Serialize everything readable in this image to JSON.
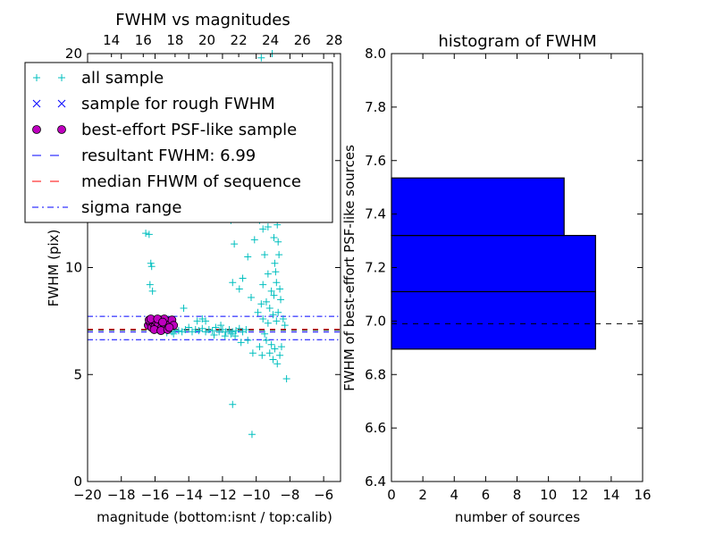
{
  "chart_data": [
    {
      "type": "scatter",
      "title": "FWHM vs magnitudes",
      "xlabel": "magnitude (bottom:isnt / top:calib)",
      "ylabel": "FWHM (pix)",
      "xlim": [
        -20,
        -5
      ],
      "ylim": [
        0,
        20
      ],
      "xticks": [
        "−20",
        "−18",
        "−16",
        "−14",
        "−12",
        "−10",
        "−8",
        "−6"
      ],
      "xtick_values": [
        -20,
        -18,
        -16,
        -14,
        -12,
        -10,
        -8,
        -6
      ],
      "top_xlim": [
        12.5,
        28.4
      ],
      "top_xticks": [
        "14",
        "16",
        "18",
        "20",
        "22",
        "24",
        "26",
        "28"
      ],
      "top_xtick_values": [
        14,
        16,
        18,
        20,
        22,
        24,
        26,
        28
      ],
      "yticks": [
        "0",
        "5",
        "10",
        "15",
        "20"
      ],
      "ytick_values": [
        0,
        5,
        10,
        15,
        20
      ],
      "legend": {
        "position": "top-left",
        "entries": [
          {
            "label": "all sample",
            "marker": "+",
            "color": "#00bfbf"
          },
          {
            "label": "sample for rough FWHM",
            "marker": "x",
            "color": "#0000ff"
          },
          {
            "label": "best-effort PSF-like sample",
            "marker": "o",
            "color": "#bf00bf"
          },
          {
            "label": "resultant FWHM: 6.99",
            "line": "dashed",
            "color": "#0000ff"
          },
          {
            "label": "median FHWM of sequence",
            "line": "dashed",
            "color": "#ff0000"
          },
          {
            "label": "sigma range",
            "line": "dashdot",
            "color": "#0000ff"
          }
        ]
      },
      "lines": {
        "resultant_fwhm": 6.99,
        "median_fwhm": 7.12,
        "sigma_low": 6.63,
        "sigma_high": 7.72
      },
      "series": [
        {
          "name": "all sample",
          "color": "#00bfbf",
          "points": [
            [
              -16.55,
              11.6
            ],
            [
              -16.35,
              11.55
            ],
            [
              -16.25,
              10.2
            ],
            [
              -16.2,
              10.05
            ],
            [
              -16.3,
              9.2
            ],
            [
              -16.15,
              8.9
            ],
            [
              -16.1,
              7.6
            ],
            [
              -16.05,
              7.2
            ],
            [
              -15.8,
              7.4
            ],
            [
              -15.5,
              7.1
            ],
            [
              -15.2,
              7.2
            ],
            [
              -15.0,
              7.0
            ],
            [
              -14.8,
              7.1
            ],
            [
              -14.6,
              7.05
            ],
            [
              -14.4,
              7.0
            ],
            [
              -14.2,
              7.1
            ],
            [
              -14.0,
              7.2
            ],
            [
              -13.8,
              7.0
            ],
            [
              -13.6,
              7.1
            ],
            [
              -13.4,
              7.05
            ],
            [
              -13.2,
              7.15
            ],
            [
              -13.0,
              7.0
            ],
            [
              -12.8,
              7.1
            ],
            [
              -12.6,
              7.05
            ],
            [
              -12.4,
              7.2
            ],
            [
              -12.2,
              7.0
            ],
            [
              -12.0,
              7.1
            ],
            [
              -11.8,
              7.0
            ],
            [
              -11.6,
              7.1
            ],
            [
              -11.4,
              7.0
            ],
            [
              -11.2,
              7.05
            ],
            [
              -11.0,
              7.15
            ],
            [
              -10.8,
              7.0
            ],
            [
              -10.6,
              7.1
            ],
            [
              -13.5,
              7.5
            ],
            [
              -13.2,
              7.6
            ],
            [
              -12.1,
              7.3
            ],
            [
              -11.85,
              6.8
            ],
            [
              -11.5,
              6.9
            ],
            [
              -14.3,
              8.1
            ],
            [
              -13.0,
              7.5
            ],
            [
              -12.5,
              6.85
            ],
            [
              -15.3,
              6.95
            ],
            [
              -14.9,
              6.9
            ],
            [
              -11.5,
              12.2
            ],
            [
              -11.3,
              11.1
            ],
            [
              -11.4,
              9.3
            ],
            [
              -11.0,
              9.0
            ],
            [
              -10.8,
              9.5
            ],
            [
              -10.5,
              10.5
            ],
            [
              -10.3,
              8.6
            ],
            [
              -10.1,
              11.3
            ],
            [
              -10.0,
              12.9
            ],
            [
              -9.9,
              13.5
            ],
            [
              -9.8,
              12.2
            ],
            [
              -9.7,
              14.0
            ],
            [
              -9.6,
              11.8
            ],
            [
              -9.5,
              13.2
            ],
            [
              -9.4,
              12.6
            ],
            [
              -9.3,
              11.9
            ],
            [
              -9.2,
              14.2
            ],
            [
              -9.1,
              13.7
            ],
            [
              -9.0,
              12.8
            ],
            [
              -8.95,
              11.4
            ],
            [
              -8.9,
              10.2
            ],
            [
              -8.85,
              9.8
            ],
            [
              -8.8,
              9.3
            ],
            [
              -9.5,
              10.6
            ],
            [
              -9.3,
              9.7
            ],
            [
              -9.1,
              8.9
            ],
            [
              -9.6,
              9.2
            ],
            [
              -9.4,
              8.4
            ],
            [
              -8.95,
              8.7
            ],
            [
              -9.2,
              8.1
            ],
            [
              -9.7,
              8.3
            ],
            [
              -9.9,
              7.9
            ],
            [
              -9.6,
              7.6
            ],
            [
              -9.3,
              7.4
            ],
            [
              -9.0,
              7.8
            ],
            [
              -8.8,
              7.5
            ],
            [
              -8.7,
              7.9
            ],
            [
              -9.4,
              6.6
            ],
            [
              -9.1,
              6.4
            ],
            [
              -9.5,
              6.9
            ],
            [
              -9.8,
              6.3
            ],
            [
              -9.2,
              6.0
            ],
            [
              -8.9,
              6.2
            ],
            [
              -8.6,
              5.9
            ],
            [
              -8.5,
              6.3
            ],
            [
              -9.0,
              5.7
            ],
            [
              -8.75,
              5.5
            ],
            [
              -8.4,
              7.6
            ],
            [
              -8.3,
              7.3
            ],
            [
              -8.2,
              4.8
            ],
            [
              -9.65,
              5.9
            ],
            [
              -10.2,
              6.0
            ],
            [
              -10.5,
              6.6
            ],
            [
              -10.9,
              6.5
            ],
            [
              -11.25,
              6.8
            ],
            [
              -9.5,
              18.2
            ],
            [
              -9.2,
              17.5
            ],
            [
              -9.0,
              17.0
            ],
            [
              -9.4,
              16.3
            ],
            [
              -9.6,
              15.8
            ],
            [
              -8.9,
              15.1
            ],
            [
              -9.1,
              15.6
            ],
            [
              -9.7,
              19.8
            ],
            [
              -9.3,
              19.1
            ],
            [
              -10.0,
              14.8
            ],
            [
              -8.85,
              13.8
            ],
            [
              -8.75,
              12.0
            ],
            [
              -8.7,
              11.2
            ],
            [
              -8.65,
              10.6
            ],
            [
              -8.6,
              9.0
            ],
            [
              -8.55,
              8.5
            ],
            [
              -11.4,
              3.6
            ],
            [
              -10.25,
              2.2
            ],
            [
              -9.05,
              20.0
            ],
            [
              -11.2,
              13.0
            ],
            [
              -11.05,
              12.5
            ]
          ]
        },
        {
          "name": "best-effort PSF-like sample",
          "color": "#bf00bf",
          "points": [
            [
              -16.4,
              7.3
            ],
            [
              -16.3,
              7.45
            ],
            [
              -16.2,
              7.2
            ],
            [
              -16.1,
              7.4
            ],
            [
              -16.0,
              7.25
            ],
            [
              -15.95,
              7.5
            ],
            [
              -15.9,
              7.15
            ],
            [
              -15.8,
              7.35
            ],
            [
              -15.7,
              7.55
            ],
            [
              -15.6,
              7.2
            ],
            [
              -15.5,
              7.4
            ],
            [
              -15.4,
              7.3
            ],
            [
              -15.3,
              7.5
            ],
            [
              -15.2,
              7.25
            ],
            [
              -15.1,
              7.4
            ],
            [
              -15.0,
              7.55
            ],
            [
              -14.9,
              7.3
            ],
            [
              -16.35,
              7.55
            ],
            [
              -16.05,
              7.1
            ],
            [
              -15.65,
              7.05
            ],
            [
              -15.45,
              7.6
            ],
            [
              -15.25,
              7.1
            ],
            [
              -16.25,
              7.6
            ],
            [
              -15.85,
              7.6
            ],
            [
              -15.15,
              7.2
            ],
            [
              -15.55,
              7.45
            ]
          ]
        }
      ]
    },
    {
      "type": "bar",
      "orientation": "horizontal",
      "title": "histogram of FWHM",
      "xlabel": "number of sources",
      "ylabel": "FWHM of best-effort PSF-like sources",
      "xlim": [
        0,
        16
      ],
      "ylim": [
        6.4,
        8.0
      ],
      "xticks": [
        "0",
        "2",
        "4",
        "6",
        "8",
        "10",
        "12",
        "14",
        "16"
      ],
      "xtick_values": [
        0,
        2,
        4,
        6,
        8,
        10,
        12,
        14,
        16
      ],
      "yticks": [
        "6.4",
        "6.6",
        "6.8",
        "7.0",
        "7.2",
        "7.4",
        "7.6",
        "7.8",
        "8.0"
      ],
      "ytick_values": [
        6.4,
        6.6,
        6.8,
        7.0,
        7.2,
        7.4,
        7.6,
        7.8,
        8.0
      ],
      "bar_color": "#0000ff",
      "bins": [
        {
          "low": 6.895,
          "high": 7.11,
          "count": 13
        },
        {
          "low": 7.11,
          "high": 7.32,
          "count": 13
        },
        {
          "low": 7.32,
          "high": 7.535,
          "count": 11
        }
      ],
      "reference_line": 6.99
    }
  ]
}
